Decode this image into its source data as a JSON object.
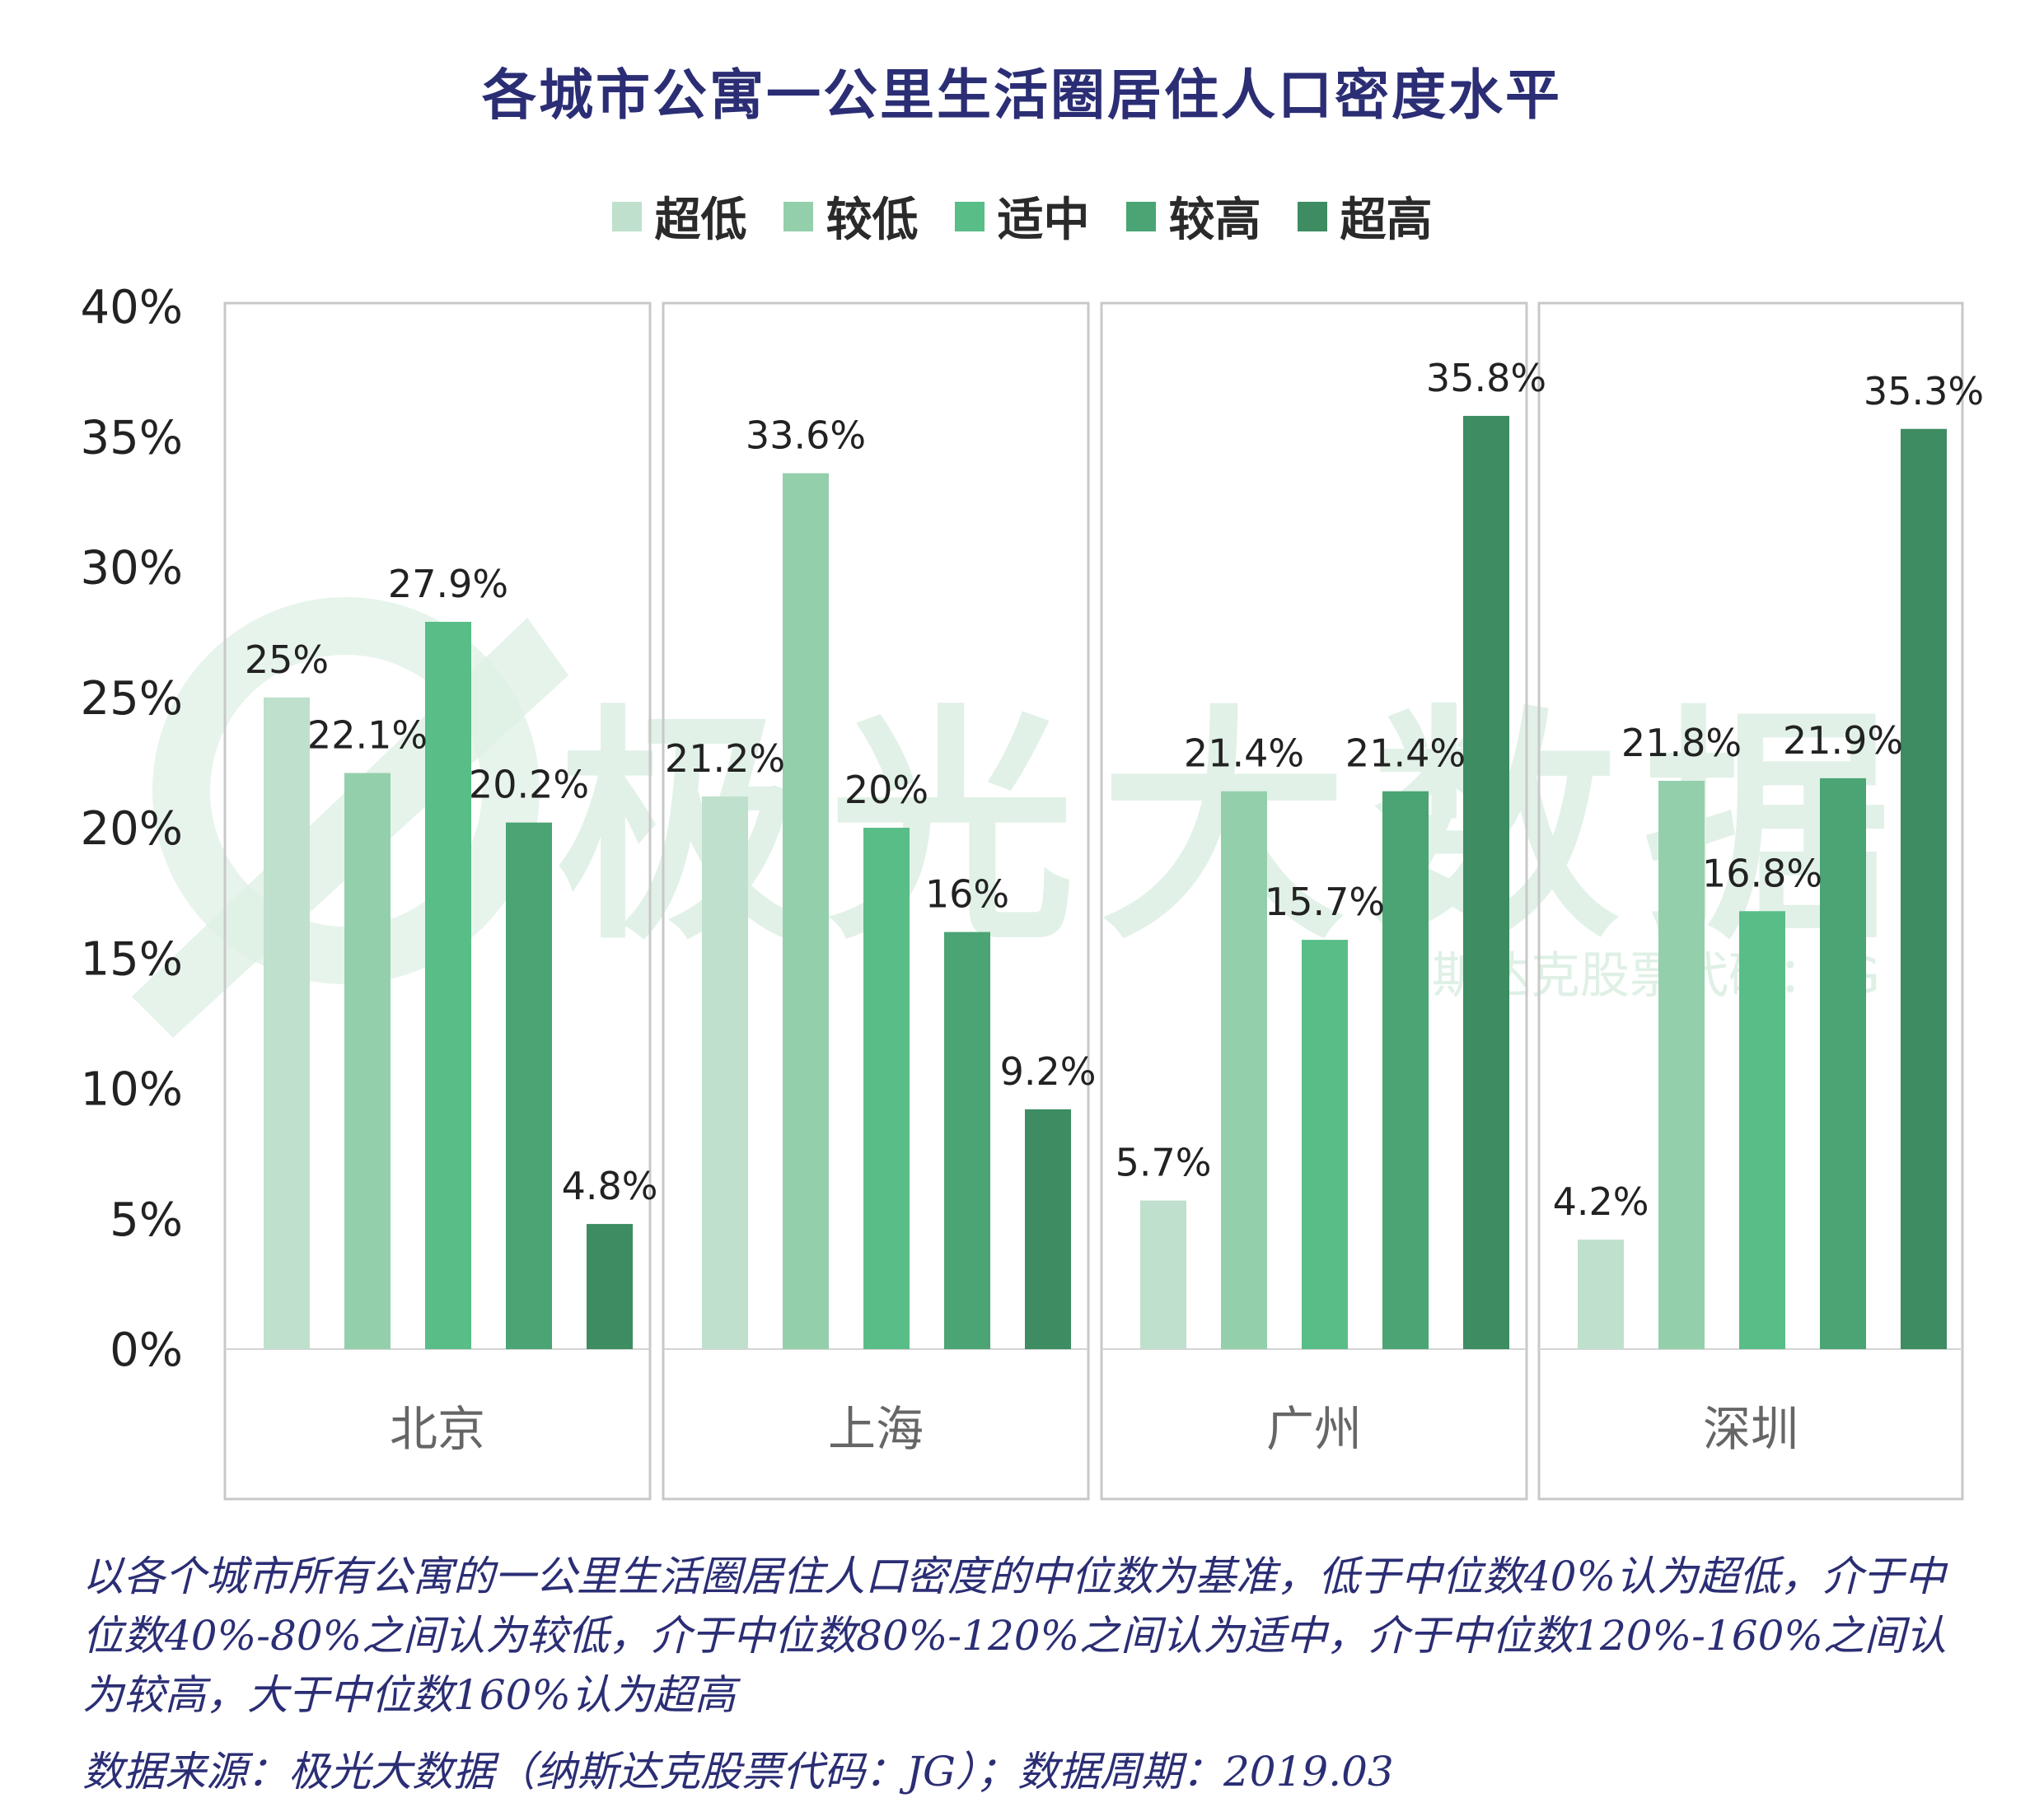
{
  "title": "各城市公寓一公里生活圈居住人口密度水平",
  "colors": {
    "series": [
      "#bfe0cc",
      "#94cfab",
      "#58bd87",
      "#4aa474",
      "#3d8c62"
    ],
    "title": "#2b2e74",
    "note": "#2b2e74",
    "axis_text": "#222222",
    "panel_border": "#c8c8c8"
  },
  "chart_data": {
    "type": "bar",
    "categories": [
      "北京",
      "上海",
      "广州",
      "深圳"
    ],
    "series": [
      {
        "name": "超低",
        "values": [
          25,
          21.2,
          5.7,
          4.2
        ],
        "labels": [
          "25%",
          "21.2%",
          "5.7%",
          "4.2%"
        ]
      },
      {
        "name": "较低",
        "values": [
          22.1,
          33.6,
          21.4,
          21.8
        ],
        "labels": [
          "22.1%",
          "33.6%",
          "21.4%",
          "21.8%"
        ]
      },
      {
        "name": "适中",
        "values": [
          27.9,
          20,
          15.7,
          16.8
        ],
        "labels": [
          "27.9%",
          "20%",
          "15.7%",
          "16.8%"
        ]
      },
      {
        "name": "较高",
        "values": [
          20.2,
          16,
          21.4,
          21.9
        ],
        "labels": [
          "20.2%",
          "16%",
          "21.4%",
          "21.9%"
        ]
      },
      {
        "name": "超高",
        "values": [
          4.8,
          9.2,
          35.8,
          35.3
        ],
        "labels": [
          "4.8%",
          "9.2%",
          "35.8%",
          "35.3%"
        ]
      }
    ],
    "yticks": [
      "0%",
      "5%",
      "10%",
      "15%",
      "20%",
      "25%",
      "30%",
      "35%",
      "40%"
    ],
    "ylim": [
      0,
      40
    ],
    "grid": false,
    "legend_position": "top-center"
  },
  "watermark": {
    "text": "极光大数据",
    "subtext": "纳斯达克股票代码：JG"
  },
  "note": "以各个城市所有公寓的一公里生活圈居住人口密度的中位数为基准，低于中位数40%认为超低，介于中位数40%-80%之间认为较低，介于中位数80%-120%之间认为适中，介于中位数120%-160%之间认为较高，大于中位数160%认为超高",
  "source": "数据来源：极光大数据（纳斯达克股票代码：JG）；数据周期：2019.03"
}
